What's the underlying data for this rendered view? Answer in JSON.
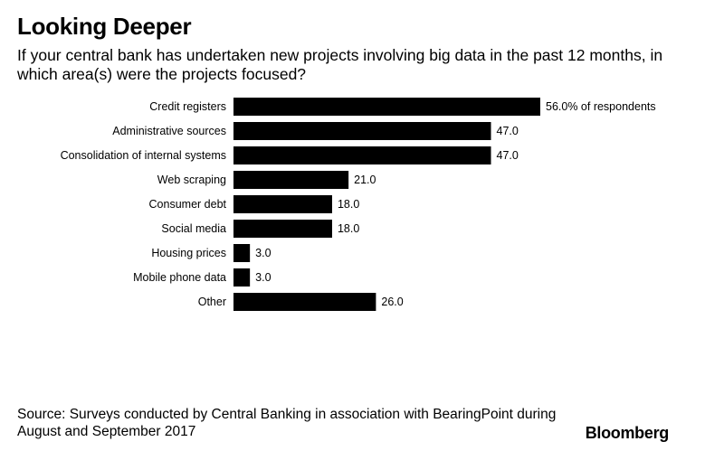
{
  "header": {
    "title": "Looking Deeper",
    "subtitle": "If your central bank has undertaken new projects involving big data in the past 12 months, in which area(s) were the projects focused?"
  },
  "footer": {
    "source": "Source: Surveys conducted by Central Banking in association with BearingPoint during August and September 2017",
    "brand": "Bloomberg"
  },
  "colors": {
    "bar": "#000000",
    "text": "#000000",
    "background": "#ffffff"
  },
  "chart_data": {
    "type": "bar",
    "orientation": "horizontal",
    "categories": [
      "Credit registers",
      "Administrative sources",
      "Consolidation of internal systems",
      "Web scraping",
      "Consumer debt",
      "Social media",
      "Housing prices",
      "Mobile phone data",
      "Other"
    ],
    "values": [
      56.0,
      47.0,
      47.0,
      21.0,
      18.0,
      18.0,
      3.0,
      3.0,
      26.0
    ],
    "value_labels": [
      "56.0% of respondents",
      "47.0",
      "47.0",
      "21.0",
      "18.0",
      "18.0",
      "3.0",
      "3.0",
      "26.0"
    ],
    "xlim": [
      0,
      56
    ],
    "grid": false,
    "legend": "none"
  }
}
